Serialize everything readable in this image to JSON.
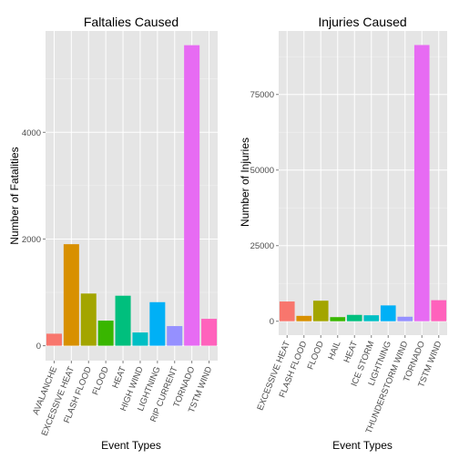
{
  "chart_data": [
    {
      "type": "bar",
      "title": "Faltalies Caused",
      "xlabel": "Event Types",
      "ylabel": "Number of Fatalities",
      "categories": [
        "AVALANCHE",
        "EXCESSIVE HEAT",
        "FLASH FLOOD",
        "FLOOD",
        "HEAT",
        "HIGH WIND",
        "LIGHTNING",
        "RIP CURRENT",
        "TORNADO",
        "TSTM WIND"
      ],
      "values": [
        225,
        1903,
        978,
        470,
        937,
        248,
        816,
        368,
        5633,
        504
      ],
      "colors": [
        "#F8766D",
        "#D89000",
        "#A3A500",
        "#39B600",
        "#00BF7D",
        "#00BFC4",
        "#00B0F6",
        "#9590FF",
        "#E76BF3",
        "#FF62BC"
      ],
      "yticks": [
        0,
        2000,
        4000
      ],
      "ylim": [
        -280,
        5900
      ],
      "grid": true
    },
    {
      "type": "bar",
      "title": "Injuries Caused",
      "xlabel": "Event Types",
      "ylabel": "Number of Injuries",
      "categories": [
        "EXCESSIVE HEAT",
        "FLASH FLOOD",
        "FLOOD",
        "HAIL",
        "HEAT",
        "ICE STORM",
        "LIGHTNING",
        "THUNDERSTORM WIND",
        "TORNADO",
        "TSTM WIND"
      ],
      "values": [
        6525,
        1777,
        6789,
        1361,
        2100,
        1975,
        5230,
        1488,
        91346,
        6957
      ],
      "colors": [
        "#F8766D",
        "#D89000",
        "#A3A500",
        "#39B600",
        "#00BF7D",
        "#00BFC4",
        "#00B0F6",
        "#9590FF",
        "#E76BF3",
        "#FF62BC"
      ],
      "yticks": [
        0,
        25000,
        50000,
        75000
      ],
      "ylim": [
        -4600,
        96000
      ],
      "grid": true
    }
  ]
}
